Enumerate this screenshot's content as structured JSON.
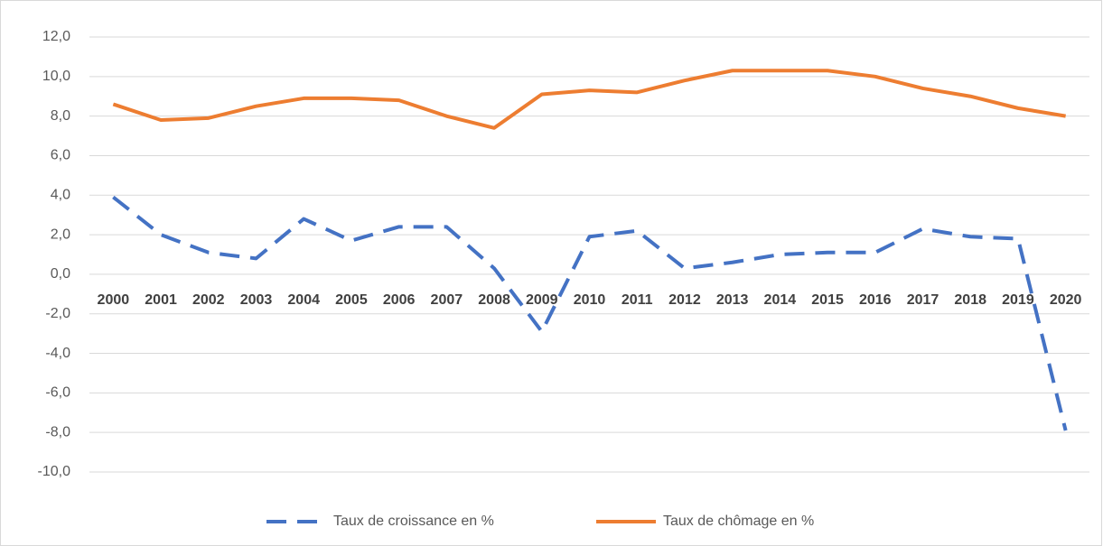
{
  "chart_data": {
    "type": "line",
    "categories": [
      "2000",
      "2001",
      "2002",
      "2003",
      "2004",
      "2005",
      "2006",
      "2007",
      "2008",
      "2009",
      "2010",
      "2011",
      "2012",
      "2013",
      "2014",
      "2015",
      "2016",
      "2017",
      "2018",
      "2019",
      "2020"
    ],
    "series": [
      {
        "name": "Taux de croissance en %",
        "color": "#4472c4",
        "dashed": true,
        "values": [
          3.9,
          2.0,
          1.1,
          0.8,
          2.8,
          1.7,
          2.4,
          2.4,
          0.3,
          -2.9,
          1.9,
          2.2,
          0.3,
          0.6,
          1.0,
          1.1,
          1.1,
          2.3,
          1.9,
          1.8,
          -7.9
        ]
      },
      {
        "name": "Taux de chômage en %",
        "color": "#ed7d31",
        "dashed": false,
        "values": [
          8.6,
          7.8,
          7.9,
          8.5,
          8.9,
          8.9,
          8.8,
          8.0,
          7.4,
          9.1,
          9.3,
          9.2,
          9.8,
          10.3,
          10.3,
          10.3,
          10.0,
          9.4,
          9.0,
          8.4,
          8.0
        ]
      }
    ],
    "ylim": [
      -10,
      12
    ],
    "yticks": [
      {
        "value": -10,
        "label": "-10,0"
      },
      {
        "value": -8,
        "label": "-8,0"
      },
      {
        "value": -6,
        "label": "-6,0"
      },
      {
        "value": -4,
        "label": "-4,0"
      },
      {
        "value": -2,
        "label": "-2,0"
      },
      {
        "value": 0,
        "label": "0,0"
      },
      {
        "value": 2,
        "label": "2,0"
      },
      {
        "value": 4,
        "label": "4,0"
      },
      {
        "value": 6,
        "label": "6,0"
      },
      {
        "value": 8,
        "label": "8,0"
      },
      {
        "value": 10,
        "label": "10,0"
      },
      {
        "value": 12,
        "label": "12,0"
      }
    ],
    "grid": true,
    "legend": "bottom"
  }
}
